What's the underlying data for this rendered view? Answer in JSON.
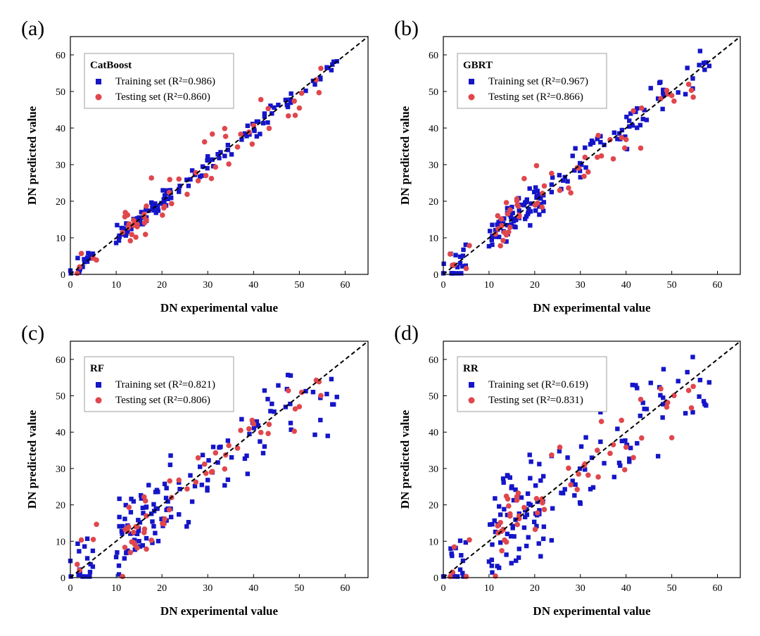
{
  "chart_data": [
    {
      "type": "scatter",
      "panel_label": "(a)",
      "legend_title": "CatBoost",
      "xlabel": "DN experimental value",
      "ylabel": "DN predicted value",
      "xlim": [
        0,
        65
      ],
      "ylim": [
        0,
        65
      ],
      "xticks": [
        0,
        10,
        20,
        30,
        40,
        50,
        60
      ],
      "yticks": [
        0,
        10,
        20,
        30,
        40,
        50,
        60
      ],
      "legend_position": "top-left",
      "diagonal": "y = x (dashed)",
      "series": [
        {
          "name": "Training set",
          "r2_label": "R²=0.986",
          "r2": 0.986,
          "marker": "square",
          "color": "#1515c8"
        },
        {
          "name": "Testing set",
          "r2_label": "R²=0.860",
          "r2": 0.86,
          "marker": "circle",
          "color": "#e0474c"
        }
      ]
    },
    {
      "type": "scatter",
      "panel_label": "(b)",
      "legend_title": "GBRT",
      "xlabel": "DN experimental value",
      "ylabel": "DN predicted value",
      "xlim": [
        0,
        65
      ],
      "ylim": [
        0,
        65
      ],
      "xticks": [
        0,
        10,
        20,
        30,
        40,
        50,
        60
      ],
      "yticks": [
        0,
        10,
        20,
        30,
        40,
        50,
        60
      ],
      "legend_position": "top-left",
      "diagonal": "y = x (dashed)",
      "series": [
        {
          "name": "Training set",
          "r2_label": "R²=0.967",
          "r2": 0.967,
          "marker": "square",
          "color": "#1515c8"
        },
        {
          "name": "Testing set",
          "r2_label": "R²=0.866",
          "r2": 0.866,
          "marker": "circle",
          "color": "#e0474c"
        }
      ]
    },
    {
      "type": "scatter",
      "panel_label": "(c)",
      "legend_title": "RF",
      "xlabel": "DN experimental value",
      "ylabel": "DN predicted value",
      "xlim": [
        0,
        65
      ],
      "ylim": [
        0,
        65
      ],
      "xticks": [
        0,
        10,
        20,
        30,
        40,
        50,
        60
      ],
      "yticks": [
        0,
        10,
        20,
        30,
        40,
        50,
        60
      ],
      "legend_position": "top-left",
      "diagonal": "y = x (dashed)",
      "series": [
        {
          "name": "Training set",
          "r2_label": "R²=0.821",
          "r2": 0.821,
          "marker": "square",
          "color": "#1515c8"
        },
        {
          "name": "Testing set",
          "r2_label": "R²=0.806",
          "r2": 0.806,
          "marker": "circle",
          "color": "#e0474c"
        }
      ]
    },
    {
      "type": "scatter",
      "panel_label": "(d)",
      "legend_title": "RR",
      "xlabel": "DN experimental value",
      "ylabel": "DN predicted value",
      "xlim": [
        0,
        65
      ],
      "ylim": [
        0,
        65
      ],
      "xticks": [
        0,
        10,
        20,
        30,
        40,
        50,
        60
      ],
      "yticks": [
        0,
        10,
        20,
        30,
        40,
        50,
        60
      ],
      "legend_position": "top-left",
      "diagonal": "y = x (dashed)",
      "series": [
        {
          "name": "Training set",
          "r2_label": "R²=0.619",
          "r2": 0.619,
          "marker": "square",
          "color": "#1515c8"
        },
        {
          "name": "Testing set",
          "r2_label": "R²=0.831",
          "r2": 0.831,
          "marker": "circle",
          "color": "#e0474c"
        }
      ]
    }
  ]
}
